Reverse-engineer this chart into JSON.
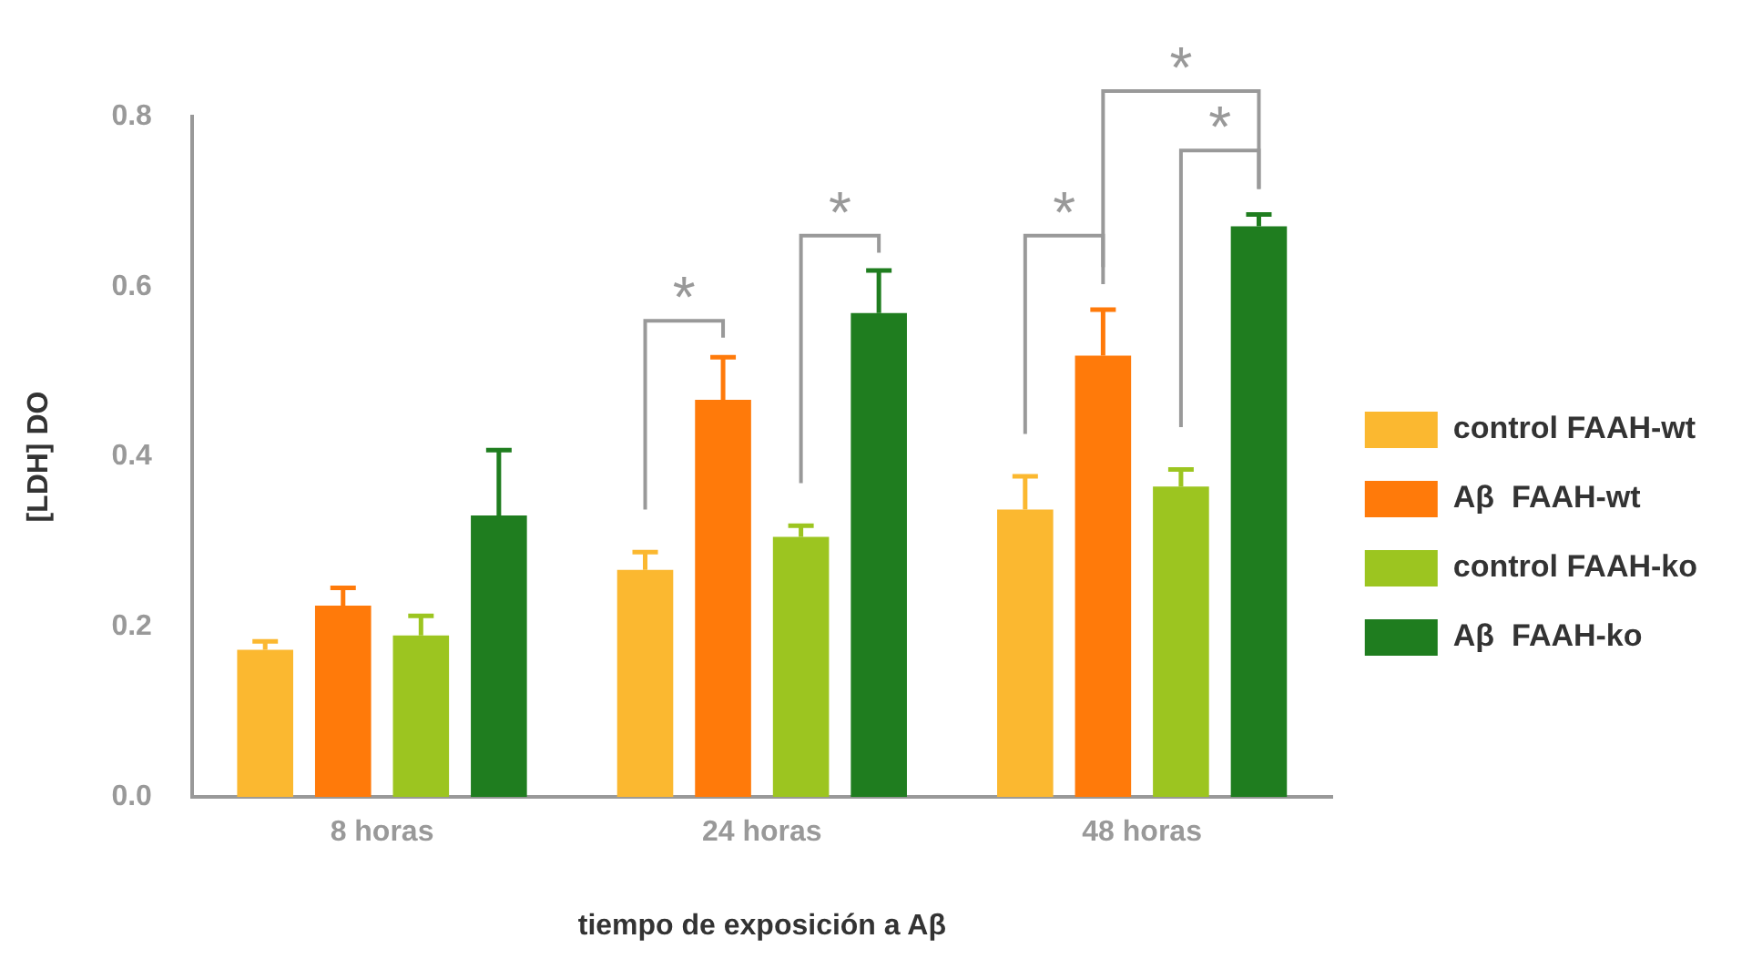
{
  "chart_data": {
    "type": "bar",
    "xlabel": "tiempo de exposición a Aβ",
    "ylabel": "[LDH] DO",
    "categories": [
      "8 horas",
      "24 horas",
      "48 horas"
    ],
    "series": [
      {
        "name": "control FAAH-wt",
        "color": "#fbb830",
        "values": [
          0.173,
          0.267,
          0.338
        ],
        "errors": [
          [
            0.173,
            0.183
          ],
          [
            0.267,
            0.288
          ],
          [
            0.338,
            0.377
          ]
        ]
      },
      {
        "name": "Aβ  FAAH-wt",
        "color": "#ff7a0a",
        "values": [
          0.225,
          0.467,
          0.519
        ],
        "errors": [
          [
            0.225,
            0.246
          ],
          [
            0.467,
            0.517
          ],
          [
            0.519,
            0.573
          ]
        ]
      },
      {
        "name": "control FAAH-ko",
        "color": "#9cc520",
        "values": [
          0.19,
          0.306,
          0.365
        ],
        "errors": [
          [
            0.19,
            0.213
          ],
          [
            0.306,
            0.319
          ],
          [
            0.365,
            0.385
          ]
        ]
      },
      {
        "name": "Aβ  FAAH-ko",
        "color": "#1f7d1f",
        "values": [
          0.331,
          0.569,
          0.671
        ],
        "errors": [
          [
            0.331,
            0.408
          ],
          [
            0.569,
            0.619
          ],
          [
            0.671,
            0.685
          ]
        ]
      }
    ],
    "ylim": [
      0,
      0.8
    ],
    "yticks": [
      {
        "value": 0,
        "label": "0.0"
      },
      0.2,
      0.4,
      0.6,
      0.8
    ],
    "grid": false,
    "legend": "right",
    "annotations": [
      "*",
      "*",
      "*",
      "*",
      "*"
    ]
  }
}
